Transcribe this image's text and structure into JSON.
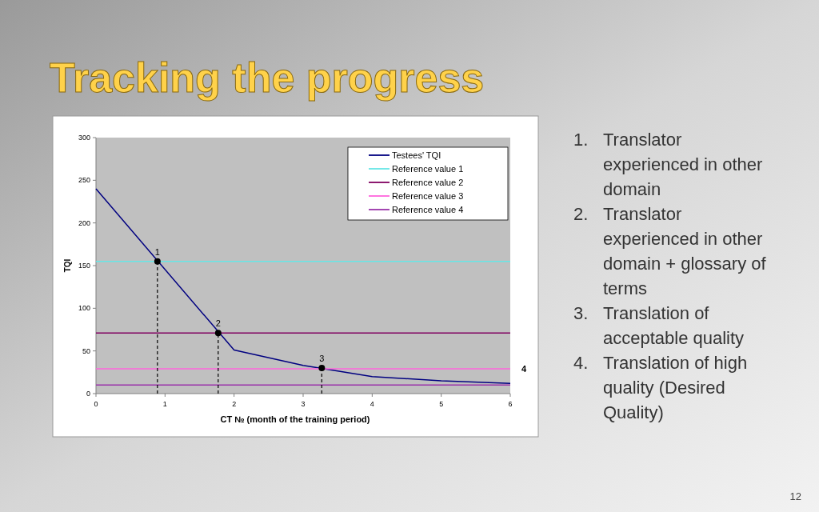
{
  "chart_data": {
    "type": "line",
    "title": "Tracking the progress",
    "xlabel": "CT № (month of the training period)",
    "ylabel": "TQI",
    "xlim": [
      0,
      6
    ],
    "xticks": [
      0,
      1,
      2,
      3,
      4,
      5,
      6
    ],
    "ylim": [
      0,
      300
    ],
    "yticks": [
      0,
      50,
      100,
      150,
      200,
      250,
      300
    ],
    "grid": false,
    "legend": "top right",
    "marker": "none",
    "line_style": "solid",
    "series": [
      {
        "name": "Testees' TQI",
        "color": "#000080",
        "x": [
          0,
          2,
          3,
          4,
          5,
          6
        ],
        "values": [
          240,
          51,
          33,
          20,
          15,
          12
        ]
      },
      {
        "name": "Reference value 1",
        "color": "#66e6e6",
        "x": [
          0,
          6
        ],
        "values": [
          155,
          155
        ]
      },
      {
        "name": "Reference value 2",
        "color": "#800060",
        "x": [
          0,
          6
        ],
        "values": [
          71,
          71
        ]
      },
      {
        "name": "Reference value 3",
        "color": "#ff66dd",
        "x": [
          0,
          6
        ],
        "values": [
          29,
          29
        ]
      },
      {
        "name": "Reference value 4",
        "color": "#9933aa",
        "x": [
          0,
          6
        ],
        "values": [
          10,
          10
        ]
      },
      {
        "type": "line",
        "color": "#000000",
        "line_style": "dashed",
        "x": [
          0.89,
          0.89
        ],
        "values": [
          0,
          155
        ]
      },
      {
        "type": "line",
        "color": "#000000",
        "line_style": "dashed",
        "x": [
          1.77,
          1.77
        ],
        "values": [
          0,
          71
        ]
      },
      {
        "type": "line",
        "color": "#000000",
        "line_style": "dashed",
        "x": [
          3.27,
          3.27
        ],
        "values": [
          0,
          30
        ]
      },
      {
        "type": "scatter",
        "color": "#000000",
        "marker": "circle",
        "x": [
          0.89,
          1.77,
          3.27
        ],
        "values": [
          155,
          71,
          30
        ]
      }
    ],
    "annotations": [
      {
        "text": "1",
        "x": 0.89,
        "y": 155
      },
      {
        "text": "2",
        "x": 1.77,
        "y": 71
      },
      {
        "text": "3",
        "x": 3.27,
        "y": 30
      },
      {
        "text": "4",
        "x": 6,
        "y": 10
      },
      "1. Translator experienced in other domain",
      "2. Translator experienced in other domain + glossary of terms",
      "3. Translation of acceptable quality",
      "4. Translation of high quality (Desired Quality)",
      "12"
    ]
  }
}
